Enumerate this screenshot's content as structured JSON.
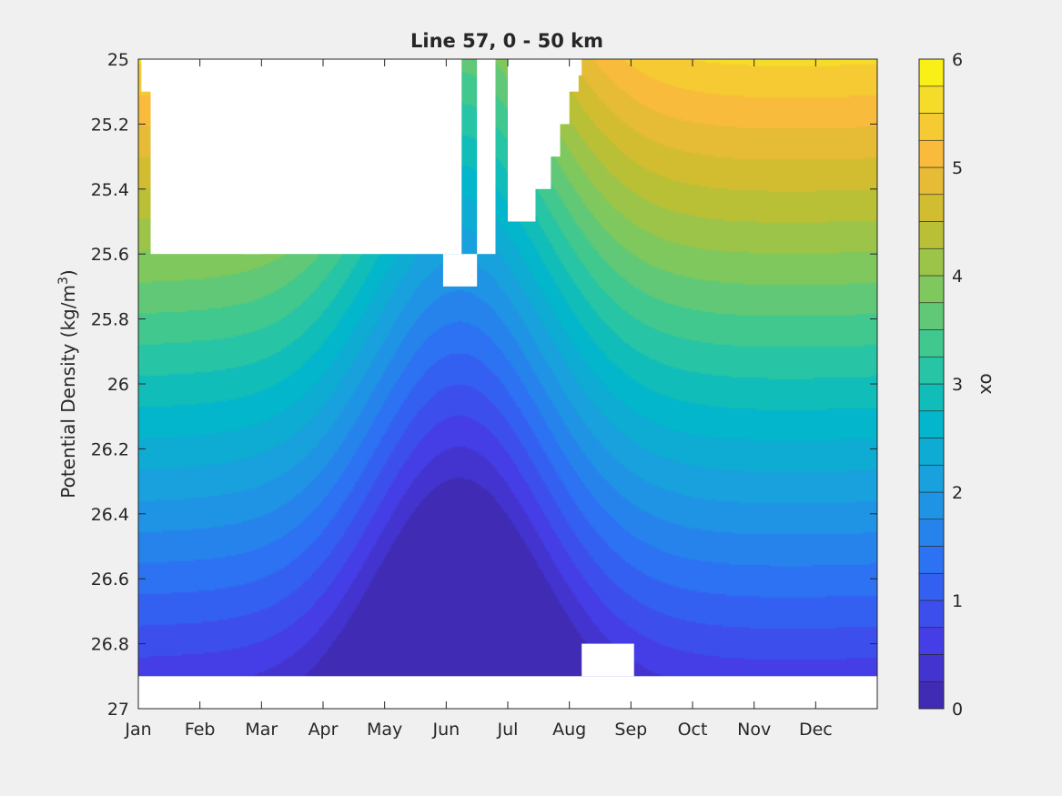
{
  "chart_data": {
    "type": "heatmap",
    "subtype": "filled-contour",
    "title": "Line 57, 0 - 50 km",
    "ylabel": "Potential Density (kg/m",
    "ylabel_sup": "3",
    "ylabel_close": ")",
    "colorbar_label": "ox",
    "x_months": [
      "Jan",
      "Feb",
      "Mar",
      "Apr",
      "May",
      "Jun",
      "Jul",
      "Aug",
      "Sep",
      "Oct",
      "Nov",
      "Dec"
    ],
    "xlim": [
      1,
      13
    ],
    "ylim": [
      25,
      27
    ],
    "y_reversed": true,
    "y_ticks": [
      25,
      25.2,
      25.4,
      25.6,
      25.8,
      26,
      26.2,
      26.4,
      26.6,
      26.8,
      27
    ],
    "y_tick_labels": [
      "25",
      "25.2",
      "25.4",
      "25.6",
      "25.8",
      "26",
      "26.2",
      "26.4",
      "26.6",
      "26.8",
      "27"
    ],
    "colorbar_ticks": [
      0,
      1,
      2,
      3,
      4,
      5,
      6
    ],
    "colorbar_tick_labels": [
      "0",
      "1",
      "2",
      "3",
      "4",
      "5",
      "6"
    ],
    "clim": [
      0,
      6
    ],
    "contour_levels": [
      0,
      0.25,
      0.5,
      0.75,
      1,
      1.25,
      1.5,
      1.75,
      2,
      2.25,
      2.5,
      2.75,
      3,
      3.25,
      3.5,
      3.75,
      4,
      4.25,
      4.5,
      4.75,
      5,
      5.25,
      5.5,
      5.75,
      6
    ],
    "colormap": "parula",
    "field_description": {
      "deep_value_at_26_9": 0.6,
      "gradient_per_unit_density": 2.6,
      "seasonal_uplift_months": "Apr-Jul",
      "max_uplift_density": 0.75
    },
    "missing_data_regions": [
      {
        "name": "surface-gap-early-year",
        "months": [
          "Jan",
          "Jun"
        ],
        "density_range": [
          25,
          25.6
        ]
      },
      {
        "name": "surface-notch-jun",
        "months": [
          "Jun",
          "Jun"
        ],
        "density_range": [
          25.6,
          25.7
        ]
      },
      {
        "name": "surface-gap-jul",
        "months": [
          "Jul",
          "Jul"
        ],
        "density_range": [
          25,
          25.6
        ]
      },
      {
        "name": "deep-gap-all-year",
        "months": [
          "Jan",
          "Dec"
        ],
        "density_range": [
          26.9,
          27
        ]
      },
      {
        "name": "deep-notch-aug",
        "months": [
          "Aug",
          "Aug"
        ],
        "density_range": [
          26.8,
          26.9
        ]
      }
    ],
    "colors": {
      "low": "#3e26a8",
      "mid": "#1fb1cf",
      "high": "#f9fb0e",
      "axes_bg": "#ffffff",
      "figure_bg": "#f0f0f0"
    },
    "grid": false,
    "legend": "colorbar-right"
  }
}
